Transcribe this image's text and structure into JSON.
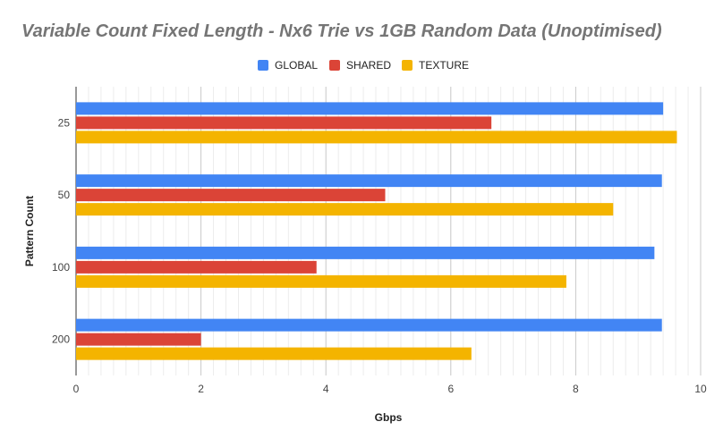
{
  "chart_data": {
    "type": "bar",
    "orientation": "horizontal",
    "title": "Variable Count Fixed Length - Nx6 Trie vs 1GB Random Data (Unoptimised)",
    "xlabel": "Gbps",
    "ylabel": "Pattern Count",
    "categories": [
      "25",
      "50",
      "100",
      "200"
    ],
    "series": [
      {
        "name": "GLOBAL",
        "color": "#4285f4",
        "values": [
          9.4,
          9.38,
          9.26,
          9.38
        ]
      },
      {
        "name": "SHARED",
        "color": "#db4437",
        "values": [
          6.65,
          4.95,
          3.85,
          2.0
        ]
      },
      {
        "name": "TEXTURE",
        "color": "#f4b400",
        "values": [
          9.62,
          8.6,
          7.85,
          6.33
        ]
      }
    ],
    "xlim": [
      0,
      10
    ],
    "xticks": [
      "0",
      "2",
      "4",
      "6",
      "8",
      "10"
    ],
    "grid": true,
    "legend_position": "top"
  }
}
